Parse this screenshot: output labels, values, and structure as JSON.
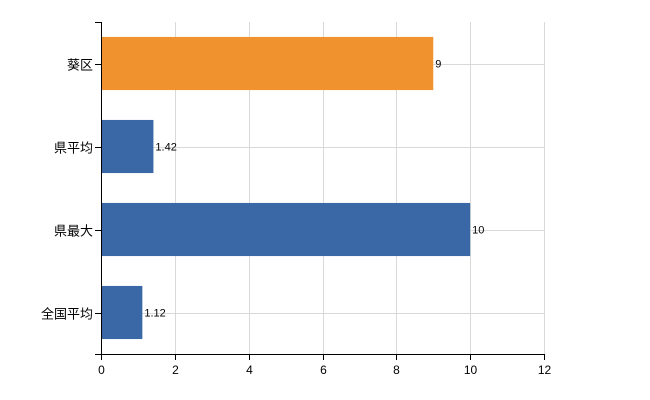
{
  "chart_data": {
    "type": "bar",
    "orientation": "horizontal",
    "categories": [
      "葵区",
      "県平均",
      "県最大",
      "全国平均"
    ],
    "values": [
      9,
      1.42,
      10,
      1.12
    ],
    "data_labels": [
      "9",
      "1.42",
      "10",
      "1.12"
    ],
    "bar_colors": [
      "#F0922E",
      "#3A67A6",
      "#3A67A6",
      "#3A67A6"
    ],
    "xlim": [
      0,
      12
    ],
    "xticks": [
      0,
      2,
      4,
      6,
      8,
      10,
      12
    ],
    "xtick_labels": [
      "0",
      "2",
      "4",
      "6",
      "8",
      "10",
      "12"
    ],
    "grid": true,
    "title": "",
    "xlabel": "",
    "ylabel": ""
  }
}
